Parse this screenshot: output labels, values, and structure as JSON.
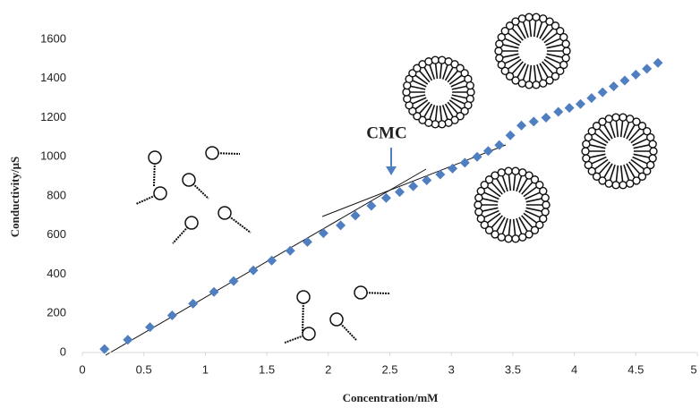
{
  "chart_data": {
    "type": "scatter",
    "x_label": "Concentration/mM",
    "y_label": "Conductivity/μS",
    "annotation": "CMC",
    "xlim": [
      0,
      5
    ],
    "xticks": [
      0,
      0.5,
      1,
      1.5,
      2,
      2.5,
      3,
      3.5,
      4,
      4.5,
      5
    ],
    "ylim": [
      0,
      1600
    ],
    "yticks": [
      0,
      200,
      400,
      600,
      800,
      1000,
      1200,
      1400,
      1600
    ],
    "series": [
      {
        "color": "#4f7fc0",
        "x": [
          0.18,
          0.37,
          0.55,
          0.73,
          0.9,
          1.07,
          1.23,
          1.39,
          1.54,
          1.69,
          1.83,
          1.96,
          2.1,
          2.22,
          2.35,
          2.47,
          2.58,
          2.69,
          2.8,
          2.91,
          3.01,
          3.11,
          3.21,
          3.3,
          3.39,
          3.48,
          3.57,
          3.67,
          3.77,
          3.87,
          3.96,
          4.05,
          4.14,
          4.23,
          4.32,
          4.41,
          4.5,
          4.59,
          4.68
        ],
        "values": [
          18,
          65,
          130,
          190,
          250,
          310,
          365,
          420,
          470,
          520,
          565,
          610,
          650,
          700,
          750,
          790,
          820,
          850,
          880,
          910,
          940,
          970,
          1000,
          1030,
          1060,
          1110,
          1160,
          1180,
          1200,
          1230,
          1250,
          1270,
          1300,
          1330,
          1360,
          1390,
          1420,
          1450,
          1480
        ]
      }
    ]
  }
}
